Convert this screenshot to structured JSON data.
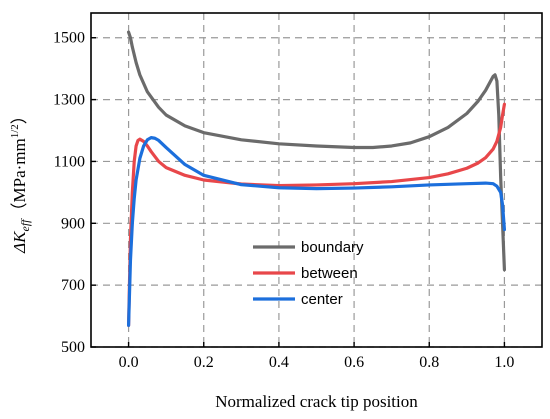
{
  "chart_data": {
    "type": "line",
    "xlabel": "Normalized crack tip position",
    "ylabel": {
      "symbol": "ΔK",
      "subscript": "eff",
      "unit_open": "（MPa·mm",
      "unit_sup": "1/2",
      "unit_close": "）"
    },
    "xlim": [
      -0.1,
      1.1
    ],
    "ylim": [
      500,
      1580
    ],
    "x_ticks": [
      0.0,
      0.2,
      0.4,
      0.6,
      0.8,
      1.0
    ],
    "x_tick_labels": [
      "0.0",
      "0.2",
      "0.4",
      "0.6",
      "0.8",
      "1.0"
    ],
    "y_ticks": [
      500,
      700,
      900,
      1100,
      1300,
      1500
    ],
    "y_tick_labels": [
      "500",
      "700",
      "900",
      "1100",
      "1300",
      "1500"
    ],
    "grid": true,
    "legend_position": "center-bottom",
    "series": [
      {
        "name": "boundary",
        "color": "#6b6b6b",
        "x": [
          0.0,
          0.005,
          0.01,
          0.02,
          0.03,
          0.05,
          0.08,
          0.1,
          0.15,
          0.2,
          0.3,
          0.4,
          0.5,
          0.6,
          0.65,
          0.7,
          0.75,
          0.8,
          0.85,
          0.9,
          0.93,
          0.95,
          0.97,
          0.975,
          0.98,
          0.985,
          0.99,
          0.995,
          1.0
        ],
        "y": [
          1518,
          1500,
          1470,
          1420,
          1380,
          1325,
          1275,
          1250,
          1215,
          1193,
          1170,
          1157,
          1150,
          1145,
          1145,
          1150,
          1160,
          1180,
          1210,
          1255,
          1295,
          1330,
          1375,
          1380,
          1360,
          1250,
          1050,
          900,
          750
        ]
      },
      {
        "name": "between",
        "color": "#e8474a",
        "x": [
          0.0,
          0.005,
          0.01,
          0.015,
          0.02,
          0.025,
          0.03,
          0.04,
          0.05,
          0.06,
          0.08,
          0.1,
          0.15,
          0.2,
          0.3,
          0.4,
          0.5,
          0.6,
          0.7,
          0.8,
          0.85,
          0.9,
          0.93,
          0.95,
          0.97,
          0.98,
          0.99,
          0.995,
          1.0
        ],
        "y": [
          570,
          850,
          1000,
          1100,
          1150,
          1168,
          1172,
          1165,
          1150,
          1132,
          1100,
          1080,
          1055,
          1040,
          1027,
          1022,
          1024,
          1028,
          1035,
          1048,
          1060,
          1078,
          1095,
          1112,
          1140,
          1165,
          1210,
          1250,
          1285
        ]
      },
      {
        "name": "center",
        "color": "#1c6fdc",
        "x": [
          0.0,
          0.005,
          0.01,
          0.015,
          0.02,
          0.03,
          0.04,
          0.05,
          0.06,
          0.07,
          0.08,
          0.1,
          0.15,
          0.2,
          0.3,
          0.4,
          0.5,
          0.6,
          0.7,
          0.8,
          0.9,
          0.95,
          0.97,
          0.98,
          0.99,
          0.995,
          1.0
        ],
        "y": [
          570,
          780,
          900,
          980,
          1040,
          1110,
          1150,
          1170,
          1177,
          1175,
          1168,
          1145,
          1090,
          1055,
          1025,
          1015,
          1012,
          1014,
          1018,
          1024,
          1028,
          1030,
          1028,
          1020,
          1000,
          960,
          880
        ]
      }
    ]
  }
}
